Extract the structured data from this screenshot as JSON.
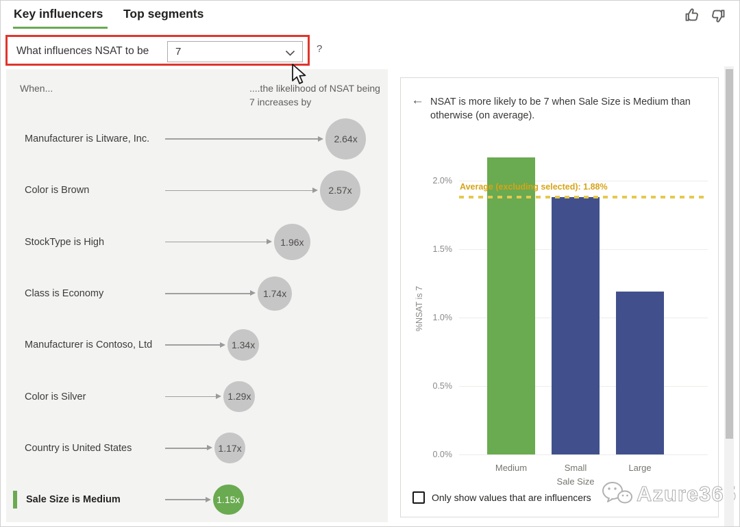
{
  "tabs": [
    {
      "label": "Key influencers",
      "active": true
    },
    {
      "label": "Top segments",
      "active": false
    }
  ],
  "question_bar": {
    "prefix": "What influences NSAT to be",
    "dropdown_value": "7",
    "help": "?"
  },
  "feedback_icons": [
    "thumb-up-icon",
    "thumb-down-icon"
  ],
  "influencers": {
    "when_header": "When...",
    "likelihood_header": "....the likelihood of NSAT being 7 increases by",
    "items": [
      {
        "label": "Manufacturer is Litware, Inc.",
        "multiplier": "2.64x",
        "value": 2.64,
        "selected": false
      },
      {
        "label": "Color is Brown",
        "multiplier": "2.57x",
        "value": 2.57,
        "selected": false
      },
      {
        "label": "StockType is High",
        "multiplier": "1.96x",
        "value": 1.96,
        "selected": false
      },
      {
        "label": "Class is Economy",
        "multiplier": "1.74x",
        "value": 1.74,
        "selected": false
      },
      {
        "label": "Manufacturer is Contoso, Ltd",
        "multiplier": "1.34x",
        "value": 1.34,
        "selected": false
      },
      {
        "label": "Color is Silver",
        "multiplier": "1.29x",
        "value": 1.29,
        "selected": false
      },
      {
        "label": "Country is United States",
        "multiplier": "1.17x",
        "value": 1.17,
        "selected": false
      },
      {
        "label": "Sale Size is Medium",
        "multiplier": "1.15x",
        "value": 1.15,
        "selected": true
      }
    ]
  },
  "detail": {
    "back_icon": "←",
    "headline": "NSAT is more likely to be 7 when Sale Size is Medium than otherwise (on average).",
    "checkbox_label": "Only show values that are influencers",
    "checkbox_checked": false
  },
  "chart_data": {
    "type": "bar",
    "title": "NSAT is more likely to be 7 when Sale Size is Medium than otherwise (on average).",
    "categories": [
      "Medium",
      "Small",
      "Large"
    ],
    "values": [
      2.17,
      1.88,
      1.19
    ],
    "value_unit": "%",
    "bar_colors": [
      "#6aaa50",
      "#41508c",
      "#41508c"
    ],
    "selected_category": "Medium",
    "xlabel": "Sale Size",
    "ylabel": "%NSAT is 7",
    "yticks": [
      {
        "value": 0.0,
        "label": "0.0%"
      },
      {
        "value": 0.5,
        "label": "0.5%"
      },
      {
        "value": 1.0,
        "label": "1.0%"
      },
      {
        "value": 1.5,
        "label": "1.5%"
      },
      {
        "value": 2.0,
        "label": "2.0%"
      }
    ],
    "ylim": [
      0,
      2.3
    ],
    "grid": true,
    "legend": "none",
    "average_line": {
      "value": 1.88,
      "label": "Average (excluding selected): 1.88%"
    }
  },
  "watermark": {
    "text": "Azure365",
    "icon": "wechat-icon"
  },
  "colors": {
    "accent_green": "#6aaa50",
    "bar_blue": "#41508c",
    "circle_gray": "#c7c6c6",
    "average_gold": "#d6a417",
    "average_dash": "#e4c94e",
    "annotation_red": "#e0352b"
  }
}
